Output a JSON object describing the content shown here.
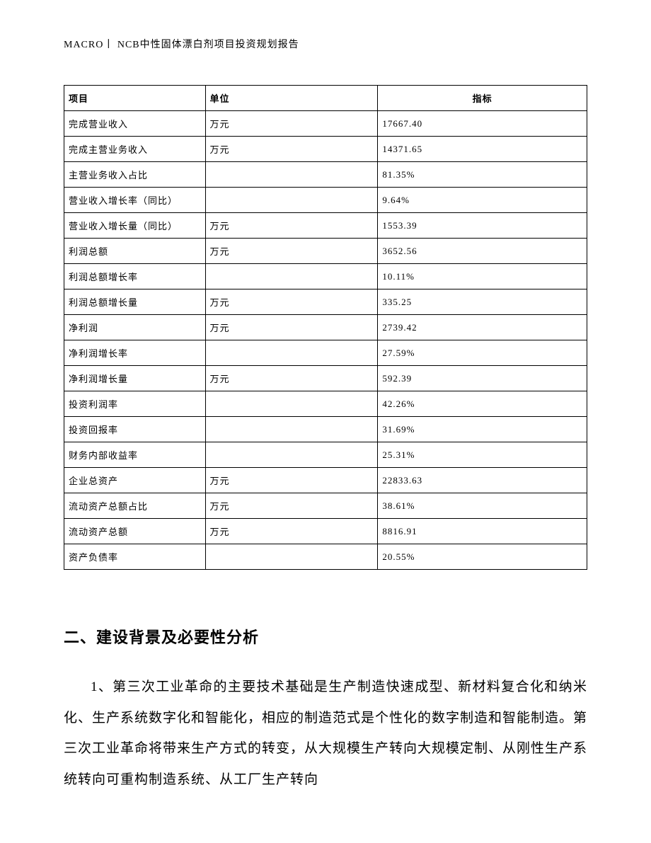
{
  "header": "MACRO丨 NCB中性固体漂白剂项目投资规划报告",
  "table": {
    "columns": [
      "项目",
      "单位",
      "指标"
    ],
    "col_widths_pct": [
      27,
      33,
      40
    ],
    "header_align": [
      "left",
      "left",
      "center"
    ],
    "border_color": "#000000",
    "font_size_pt": 10,
    "rows": [
      {
        "item": "完成营业收入",
        "unit": "万元",
        "value": "17667.40"
      },
      {
        "item": "完成主营业务收入",
        "unit": "万元",
        "value": "14371.65"
      },
      {
        "item": "主营业务收入占比",
        "unit": "",
        "value": "81.35%"
      },
      {
        "item": "营业收入增长率（同比）",
        "unit": "",
        "value": "9.64%"
      },
      {
        "item": "营业收入增长量（同比）",
        "unit": "万元",
        "value": "1553.39"
      },
      {
        "item": "利润总额",
        "unit": "万元",
        "value": "3652.56"
      },
      {
        "item": "利润总额增长率",
        "unit": "",
        "value": "10.11%"
      },
      {
        "item": "利润总额增长量",
        "unit": "万元",
        "value": "335.25"
      },
      {
        "item": "净利润",
        "unit": "万元",
        "value": "2739.42"
      },
      {
        "item": "净利润增长率",
        "unit": "",
        "value": "27.59%"
      },
      {
        "item": "净利润增长量",
        "unit": "万元",
        "value": "592.39"
      },
      {
        "item": "投资利润率",
        "unit": "",
        "value": "42.26%"
      },
      {
        "item": "投资回报率",
        "unit": "",
        "value": "31.69%"
      },
      {
        "item": "财务内部收益率",
        "unit": "",
        "value": "25.31%"
      },
      {
        "item": "企业总资产",
        "unit": "万元",
        "value": "22833.63"
      },
      {
        "item": "流动资产总额占比",
        "unit": "万元",
        "value": "38.61%"
      },
      {
        "item": "流动资产总额",
        "unit": "万元",
        "value": "8816.91"
      },
      {
        "item": "资产负债率",
        "unit": "",
        "value": "20.55%"
      }
    ]
  },
  "section": {
    "heading": "二、建设背景及必要性分析",
    "paragraph": "1、第三次工业革命的主要技术基础是生产制造快速成型、新材料复合化和纳米化、生产系统数字化和智能化，相应的制造范式是个性化的数字制造和智能制造。第三次工业革命将带来生产方式的转变，从大规模生产转向大规模定制、从刚性生产系统转向可重构制造系统、从工厂生产转向"
  },
  "style": {
    "page_bg": "#ffffff",
    "text_color": "#000000",
    "body_font": "SimSun",
    "heading_font": "SimHei",
    "body_font_size_pt": 14,
    "heading_font_size_pt": 16,
    "line_height": 2.3
  }
}
